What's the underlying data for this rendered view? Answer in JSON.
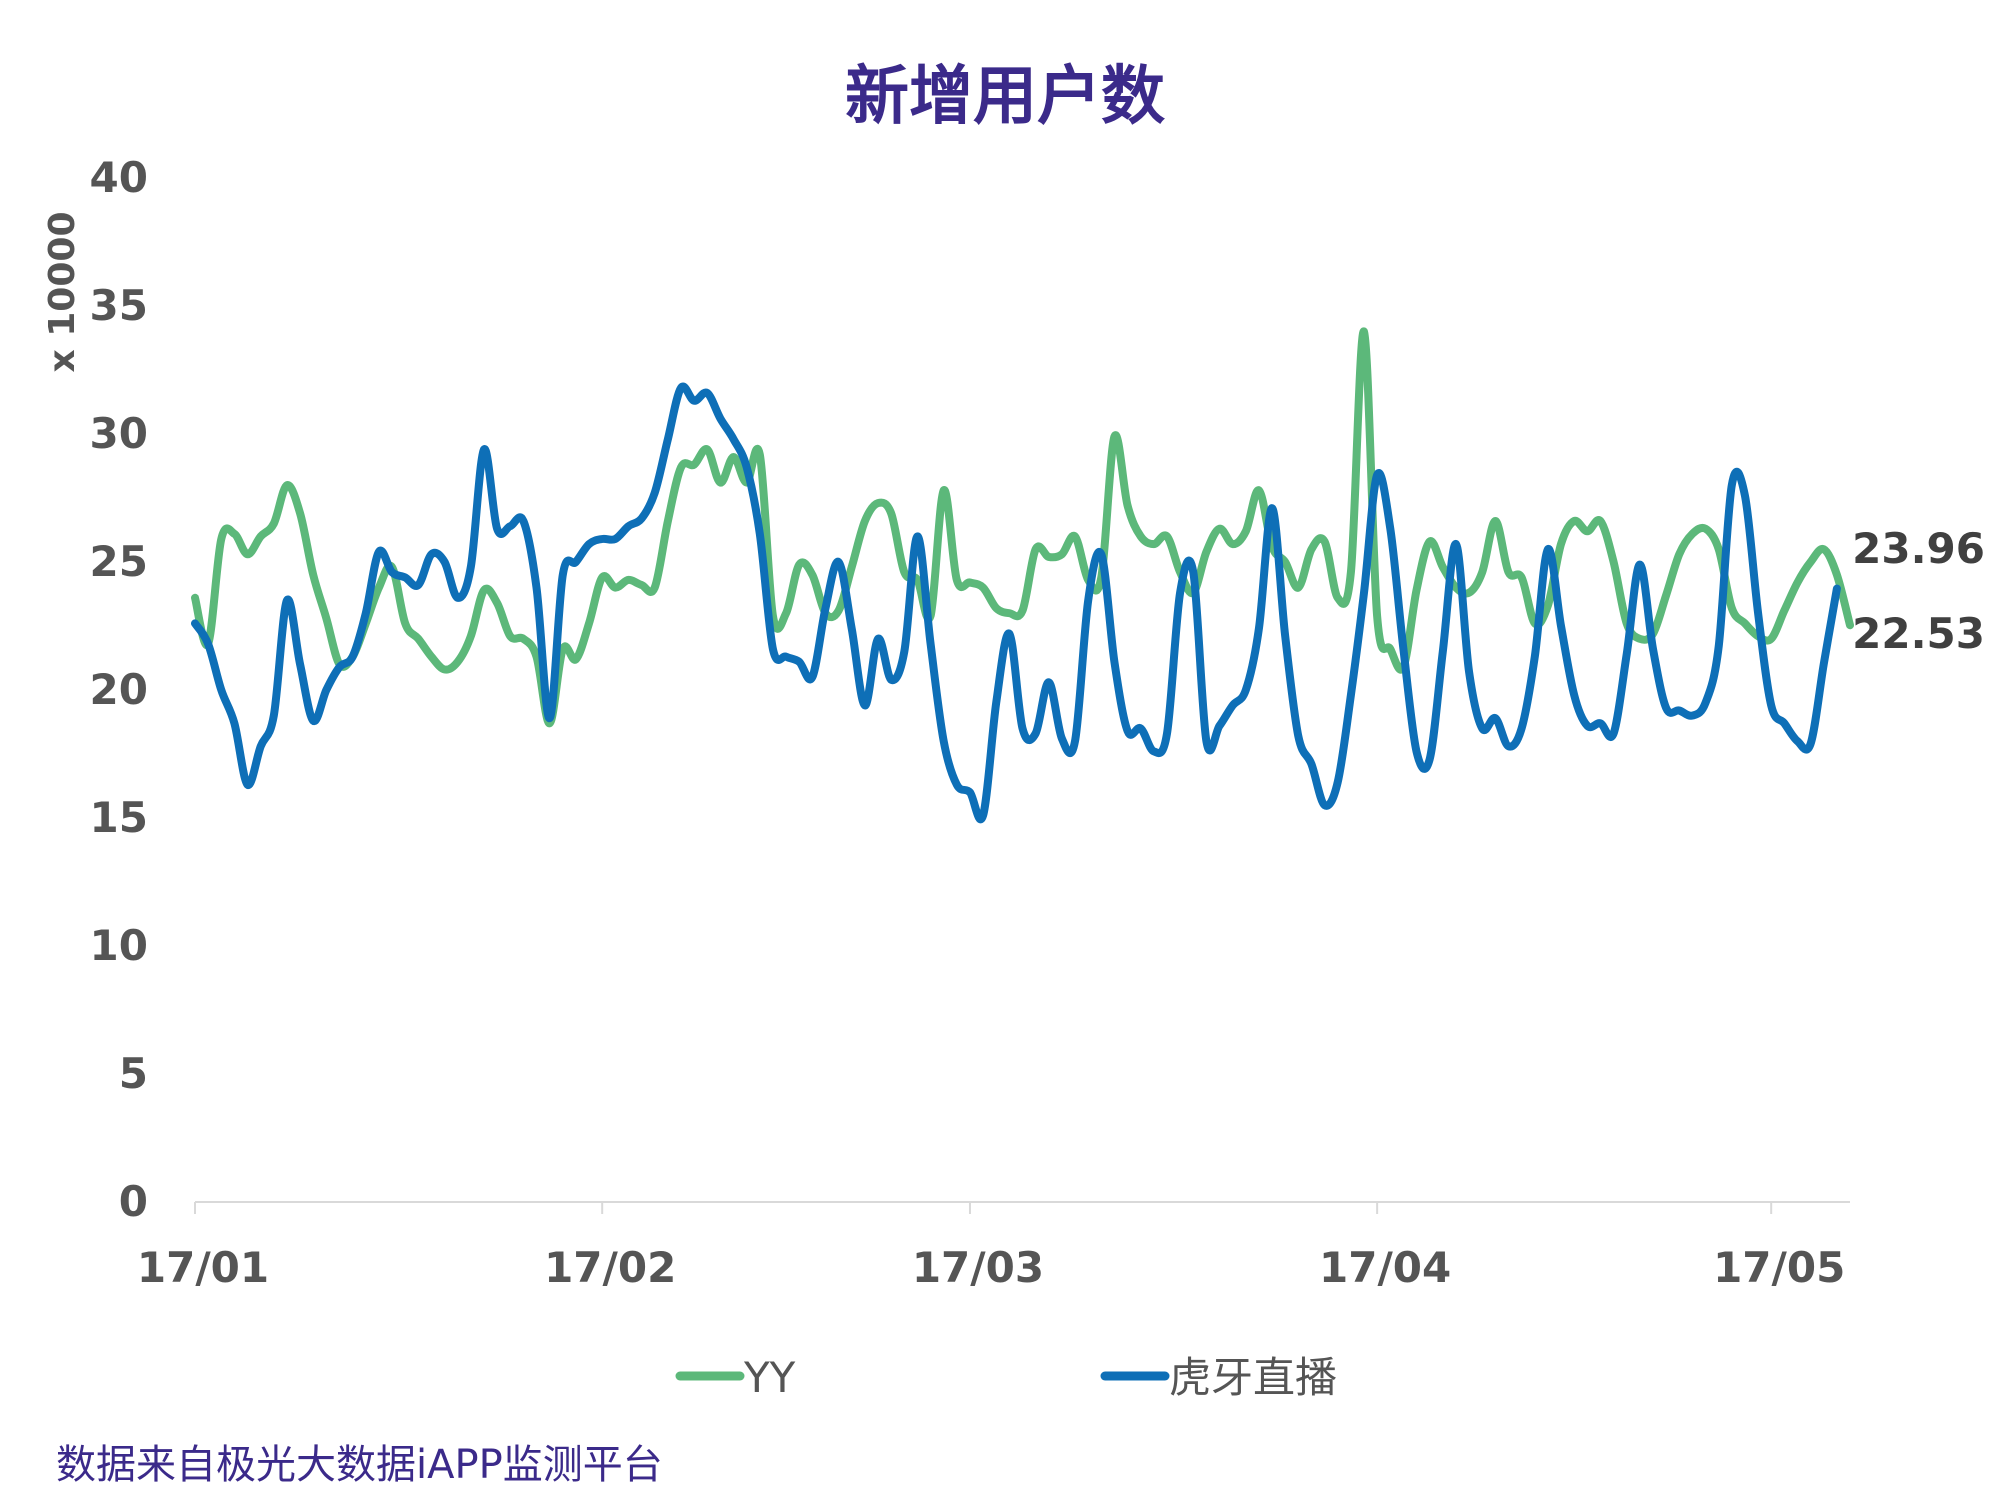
{
  "chart_data": {
    "type": "line",
    "title": "新增用户数",
    "ylabel": "x 10000",
    "xlabel": "",
    "ylim": [
      0,
      40
    ],
    "yticks": [
      0,
      5,
      10,
      15,
      20,
      25,
      30,
      35,
      40
    ],
    "x_range": [
      "2017-01-01",
      "2017-05-07"
    ],
    "xticks": [
      {
        "label": "17/01",
        "date": "2017-01-01"
      },
      {
        "label": "17/02",
        "date": "2017-02-01"
      },
      {
        "label": "17/03",
        "date": "2017-03-01"
      },
      {
        "label": "17/04",
        "date": "2017-04-01"
      },
      {
        "label": "17/05",
        "date": "2017-05-01"
      }
    ],
    "legend_position": "bottom",
    "grid": false,
    "series": [
      {
        "name": "YY",
        "color": "#5cb87a",
        "end_label": "22.53",
        "points": [
          [
            "2017-01-01",
            23.6
          ],
          [
            "2017-01-02",
            21.8
          ],
          [
            "2017-01-03",
            25.9
          ],
          [
            "2017-01-04",
            26.1
          ],
          [
            "2017-01-05",
            25.3
          ],
          [
            "2017-01-06",
            26.0
          ],
          [
            "2017-01-07",
            26.5
          ],
          [
            "2017-01-08",
            28.0
          ],
          [
            "2017-01-09",
            26.9
          ],
          [
            "2017-01-10",
            24.5
          ],
          [
            "2017-01-11",
            22.8
          ],
          [
            "2017-01-12",
            21.0
          ],
          [
            "2017-01-13",
            21.3
          ],
          [
            "2017-01-14",
            22.6
          ],
          [
            "2017-01-15",
            24.0
          ],
          [
            "2017-01-16",
            24.8
          ],
          [
            "2017-01-17",
            22.6
          ],
          [
            "2017-01-18",
            22.0
          ],
          [
            "2017-01-19",
            21.3
          ],
          [
            "2017-01-20",
            20.8
          ],
          [
            "2017-01-21",
            21.1
          ],
          [
            "2017-01-22",
            22.1
          ],
          [
            "2017-01-23",
            23.9
          ],
          [
            "2017-01-24",
            23.4
          ],
          [
            "2017-01-25",
            22.1
          ],
          [
            "2017-01-26",
            22.0
          ],
          [
            "2017-01-27",
            21.3
          ],
          [
            "2017-01-28",
            18.7
          ],
          [
            "2017-01-29",
            21.6
          ],
          [
            "2017-01-30",
            21.2
          ],
          [
            "2017-01-31",
            22.6
          ],
          [
            "2017-02-01",
            24.4
          ],
          [
            "2017-02-02",
            24.0
          ],
          [
            "2017-02-03",
            24.3
          ],
          [
            "2017-02-04",
            24.1
          ],
          [
            "2017-02-05",
            24.0
          ],
          [
            "2017-02-06",
            26.6
          ],
          [
            "2017-02-07",
            28.7
          ],
          [
            "2017-02-08",
            28.8
          ],
          [
            "2017-02-09",
            29.4
          ],
          [
            "2017-02-10",
            28.1
          ],
          [
            "2017-02-11",
            29.1
          ],
          [
            "2017-02-12",
            28.1
          ],
          [
            "2017-02-13",
            29.2
          ],
          [
            "2017-02-14",
            22.9
          ],
          [
            "2017-02-15",
            23.0
          ],
          [
            "2017-02-16",
            24.9
          ],
          [
            "2017-02-17",
            24.5
          ],
          [
            "2017-02-18",
            23.0
          ],
          [
            "2017-02-19",
            23.1
          ],
          [
            "2017-02-20",
            24.8
          ],
          [
            "2017-02-21",
            26.6
          ],
          [
            "2017-02-22",
            27.3
          ],
          [
            "2017-02-23",
            26.9
          ],
          [
            "2017-02-24",
            24.6
          ],
          [
            "2017-02-25",
            24.3
          ],
          [
            "2017-02-26",
            22.9
          ],
          [
            "2017-02-27",
            27.8
          ],
          [
            "2017-02-28",
            24.3
          ],
          [
            "2017-03-01",
            24.2
          ],
          [
            "2017-03-02",
            24.0
          ],
          [
            "2017-03-03",
            23.2
          ],
          [
            "2017-03-04",
            23.0
          ],
          [
            "2017-03-05",
            23.1
          ],
          [
            "2017-03-06",
            25.5
          ],
          [
            "2017-03-07",
            25.2
          ],
          [
            "2017-03-08",
            25.3
          ],
          [
            "2017-03-09",
            26.0
          ],
          [
            "2017-03-10",
            24.3
          ],
          [
            "2017-03-11",
            24.4
          ],
          [
            "2017-03-12",
            29.9
          ],
          [
            "2017-03-13",
            27.2
          ],
          [
            "2017-03-14",
            26.0
          ],
          [
            "2017-03-15",
            25.7
          ],
          [
            "2017-03-16",
            26.0
          ],
          [
            "2017-03-17",
            24.6
          ],
          [
            "2017-03-18",
            23.8
          ],
          [
            "2017-03-19",
            25.4
          ],
          [
            "2017-03-20",
            26.3
          ],
          [
            "2017-03-21",
            25.7
          ],
          [
            "2017-03-22",
            26.2
          ],
          [
            "2017-03-23",
            27.8
          ],
          [
            "2017-03-24",
            25.6
          ],
          [
            "2017-03-25",
            25.0
          ],
          [
            "2017-03-26",
            24.0
          ],
          [
            "2017-03-27",
            25.5
          ],
          [
            "2017-03-28",
            25.8
          ],
          [
            "2017-03-29",
            23.6
          ],
          [
            "2017-03-30",
            24.6
          ],
          [
            "2017-03-31",
            34.0
          ],
          [
            "2017-04-01",
            22.9
          ],
          [
            "2017-04-02",
            21.6
          ],
          [
            "2017-04-03",
            20.9
          ],
          [
            "2017-04-04",
            23.9
          ],
          [
            "2017-04-05",
            25.8
          ],
          [
            "2017-04-06",
            24.8
          ],
          [
            "2017-04-07",
            24.0
          ],
          [
            "2017-04-08",
            23.8
          ],
          [
            "2017-04-09",
            24.6
          ],
          [
            "2017-04-10",
            26.6
          ],
          [
            "2017-04-11",
            24.6
          ],
          [
            "2017-04-12",
            24.4
          ],
          [
            "2017-04-13",
            22.6
          ],
          [
            "2017-04-14",
            23.3
          ],
          [
            "2017-04-15",
            25.7
          ],
          [
            "2017-04-16",
            26.6
          ],
          [
            "2017-04-17",
            26.2
          ],
          [
            "2017-04-18",
            26.6
          ],
          [
            "2017-04-19",
            25.0
          ],
          [
            "2017-04-20",
            22.6
          ],
          [
            "2017-04-21",
            22.0
          ],
          [
            "2017-04-22",
            22.2
          ],
          [
            "2017-04-23",
            23.7
          ],
          [
            "2017-04-24",
            25.3
          ],
          [
            "2017-04-25",
            26.1
          ],
          [
            "2017-04-26",
            26.3
          ],
          [
            "2017-04-27",
            25.5
          ],
          [
            "2017-04-28",
            23.2
          ],
          [
            "2017-04-29",
            22.6
          ],
          [
            "2017-04-30",
            22.1
          ],
          [
            "2017-05-01",
            22.0
          ],
          [
            "2017-05-02",
            23.1
          ],
          [
            "2017-05-03",
            24.2
          ],
          [
            "2017-05-04",
            25.0
          ],
          [
            "2017-05-05",
            25.5
          ],
          [
            "2017-05-06",
            24.5
          ],
          [
            "2017-05-07",
            22.53
          ]
        ]
      },
      {
        "name": "虎牙直播",
        "color": "#0e6fb7",
        "end_label": "23.96",
        "points": [
          [
            "2017-01-01",
            22.6
          ],
          [
            "2017-01-02",
            21.8
          ],
          [
            "2017-01-03",
            20.0
          ],
          [
            "2017-01-04",
            18.7
          ],
          [
            "2017-01-05",
            16.3
          ],
          [
            "2017-01-06",
            17.8
          ],
          [
            "2017-01-07",
            19.0
          ],
          [
            "2017-01-08",
            23.5
          ],
          [
            "2017-01-09",
            21.0
          ],
          [
            "2017-01-10",
            18.8
          ],
          [
            "2017-01-11",
            20.0
          ],
          [
            "2017-01-12",
            20.9
          ],
          [
            "2017-01-13",
            21.3
          ],
          [
            "2017-01-14",
            23.0
          ],
          [
            "2017-01-15",
            25.4
          ],
          [
            "2017-01-16",
            24.6
          ],
          [
            "2017-01-17",
            24.4
          ],
          [
            "2017-01-18",
            24.1
          ],
          [
            "2017-01-19",
            25.3
          ],
          [
            "2017-01-20",
            25.0
          ],
          [
            "2017-01-21",
            23.6
          ],
          [
            "2017-01-22",
            24.8
          ],
          [
            "2017-01-23",
            29.4
          ],
          [
            "2017-01-24",
            26.3
          ],
          [
            "2017-01-25",
            26.4
          ],
          [
            "2017-01-26",
            26.6
          ],
          [
            "2017-01-27",
            24.0
          ],
          [
            "2017-01-28",
            18.9
          ],
          [
            "2017-01-29",
            24.5
          ],
          [
            "2017-01-30",
            25.0
          ],
          [
            "2017-01-31",
            25.7
          ],
          [
            "2017-02-01",
            25.9
          ],
          [
            "2017-02-02",
            25.9
          ],
          [
            "2017-02-03",
            26.4
          ],
          [
            "2017-02-04",
            26.7
          ],
          [
            "2017-02-05",
            27.7
          ],
          [
            "2017-02-06",
            29.8
          ],
          [
            "2017-02-07",
            31.8
          ],
          [
            "2017-02-08",
            31.3
          ],
          [
            "2017-02-09",
            31.6
          ],
          [
            "2017-02-10",
            30.6
          ],
          [
            "2017-02-11",
            29.8
          ],
          [
            "2017-02-12",
            28.7
          ],
          [
            "2017-02-13",
            26.1
          ],
          [
            "2017-02-14",
            21.6
          ],
          [
            "2017-02-15",
            21.3
          ],
          [
            "2017-02-16",
            21.1
          ],
          [
            "2017-02-17",
            20.5
          ],
          [
            "2017-02-18",
            23.2
          ],
          [
            "2017-02-19",
            25.0
          ],
          [
            "2017-02-20",
            22.4
          ],
          [
            "2017-02-21",
            19.4
          ],
          [
            "2017-02-22",
            22.0
          ],
          [
            "2017-02-23",
            20.4
          ],
          [
            "2017-02-24",
            21.5
          ],
          [
            "2017-02-25",
            26.0
          ],
          [
            "2017-02-26",
            21.8
          ],
          [
            "2017-02-27",
            18.0
          ],
          [
            "2017-02-28",
            16.3
          ],
          [
            "2017-03-01",
            16.0
          ],
          [
            "2017-03-02",
            15.1
          ],
          [
            "2017-03-03",
            19.5
          ],
          [
            "2017-03-04",
            22.2
          ],
          [
            "2017-03-05",
            18.5
          ],
          [
            "2017-03-06",
            18.3
          ],
          [
            "2017-03-07",
            20.3
          ],
          [
            "2017-03-08",
            18.1
          ],
          [
            "2017-03-09",
            18.0
          ],
          [
            "2017-03-10",
            23.5
          ],
          [
            "2017-03-11",
            25.3
          ],
          [
            "2017-03-12",
            21.1
          ],
          [
            "2017-03-13",
            18.4
          ],
          [
            "2017-03-14",
            18.5
          ],
          [
            "2017-03-15",
            17.6
          ],
          [
            "2017-03-16",
            18.3
          ],
          [
            "2017-03-17",
            23.8
          ],
          [
            "2017-03-18",
            24.6
          ],
          [
            "2017-03-19",
            18.0
          ],
          [
            "2017-03-20",
            18.6
          ],
          [
            "2017-03-21",
            19.4
          ],
          [
            "2017-03-22",
            20.0
          ],
          [
            "2017-03-23",
            22.4
          ],
          [
            "2017-03-24",
            27.1
          ],
          [
            "2017-03-25",
            22.1
          ],
          [
            "2017-03-26",
            18.2
          ],
          [
            "2017-03-27",
            17.1
          ],
          [
            "2017-03-28",
            15.5
          ],
          [
            "2017-03-29",
            16.4
          ],
          [
            "2017-03-30",
            19.8
          ],
          [
            "2017-03-31",
            23.8
          ],
          [
            "2017-04-01",
            28.4
          ],
          [
            "2017-04-02",
            26.3
          ],
          [
            "2017-04-03",
            21.6
          ],
          [
            "2017-04-04",
            17.6
          ],
          [
            "2017-04-05",
            17.3
          ],
          [
            "2017-04-06",
            21.5
          ],
          [
            "2017-04-07",
            25.7
          ],
          [
            "2017-04-08",
            20.7
          ],
          [
            "2017-04-09",
            18.5
          ],
          [
            "2017-04-10",
            18.9
          ],
          [
            "2017-04-11",
            17.8
          ],
          [
            "2017-04-12",
            18.5
          ],
          [
            "2017-04-13",
            21.3
          ],
          [
            "2017-04-14",
            25.5
          ],
          [
            "2017-04-15",
            22.5
          ],
          [
            "2017-04-16",
            19.8
          ],
          [
            "2017-04-17",
            18.6
          ],
          [
            "2017-04-18",
            18.7
          ],
          [
            "2017-04-19",
            18.3
          ],
          [
            "2017-04-20",
            21.4
          ],
          [
            "2017-04-21",
            24.9
          ],
          [
            "2017-04-22",
            21.6
          ],
          [
            "2017-04-23",
            19.3
          ],
          [
            "2017-04-24",
            19.2
          ],
          [
            "2017-04-25",
            19.0
          ],
          [
            "2017-04-26",
            19.5
          ],
          [
            "2017-04-27",
            21.7
          ],
          [
            "2017-04-28",
            28.0
          ],
          [
            "2017-04-29",
            27.6
          ],
          [
            "2017-04-30",
            23.0
          ],
          [
            "2017-05-01",
            19.4
          ],
          [
            "2017-05-02",
            18.7
          ],
          [
            "2017-05-03",
            18.0
          ],
          [
            "2017-05-04",
            17.9
          ],
          [
            "2017-05-05",
            21.0
          ],
          [
            "2017-05-06",
            23.96
          ]
        ]
      }
    ]
  },
  "footer": {
    "source": "数据来自极光大数据iAPP监测平台"
  }
}
